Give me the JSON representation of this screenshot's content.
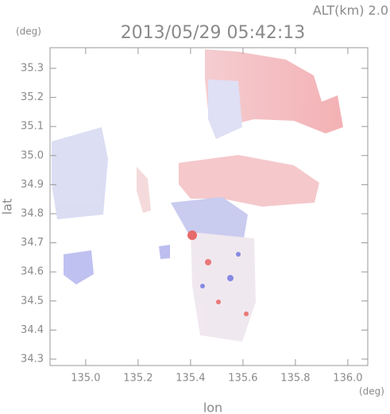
{
  "chart_data": {
    "type": "map",
    "title": "2013/05/29 05:42:13",
    "subtitle": "ALT(km) 2.0",
    "x_label": "lon",
    "y_label": "lat",
    "x_unit": "(deg)",
    "y_unit": "(deg)",
    "xlim": [
      134.864,
      136.076
    ],
    "ylim": [
      34.278,
      35.371
    ],
    "xticks": [
      {
        "value": 135,
        "label": "135.0"
      },
      {
        "value": 135.2,
        "label": "135.2"
      },
      {
        "value": 135.4,
        "label": "135.4"
      },
      {
        "value": 135.6,
        "label": "135.6"
      },
      {
        "value": 135.8,
        "label": "135.8"
      },
      {
        "value": 136,
        "label": "136.0"
      }
    ],
    "yticks": [
      34.3,
      34.4,
      34.5,
      34.6,
      34.7,
      34.8,
      34.9,
      {
        "value": 35,
        "label": "35.0"
      },
      35.1,
      35.2,
      35.3
    ]
  }
}
